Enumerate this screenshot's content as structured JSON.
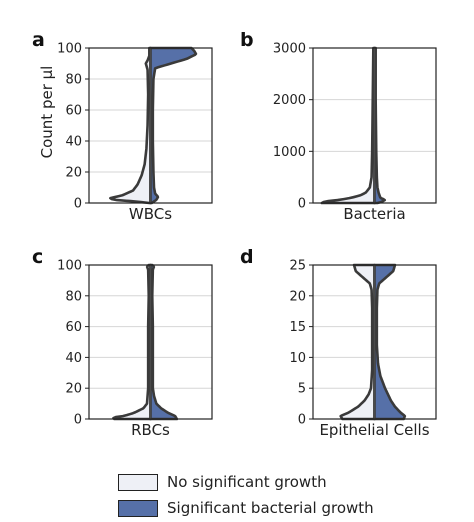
{
  "colors": {
    "no_growth": "#eef0f6",
    "growth": "#5670a8",
    "outline": "#3a3a3a",
    "centerline": "#4a4a4a"
  },
  "y_axis_title": "Count per µl",
  "legend": [
    {
      "label": "No significant growth",
      "color": "#eef0f6"
    },
    {
      "label": "Significant bacterial growth",
      "color": "#5670a8"
    }
  ],
  "chart_data": [
    {
      "type": "violin",
      "panel": "a",
      "xlabel": "WBCs",
      "ylim": [
        0,
        100
      ],
      "yticks": [
        0,
        20,
        40,
        60,
        80,
        100
      ],
      "grid": true,
      "series": [
        {
          "name": "No significant growth",
          "side": "left",
          "density": [
            [
              0,
              0.02
            ],
            [
              1,
              0.25
            ],
            [
              2,
              0.62
            ],
            [
              3,
              0.7
            ],
            [
              5,
              0.48
            ],
            [
              8,
              0.3
            ],
            [
              12,
              0.22
            ],
            [
              18,
              0.15
            ],
            [
              25,
              0.1
            ],
            [
              35,
              0.07
            ],
            [
              50,
              0.05
            ],
            [
              70,
              0.04
            ],
            [
              86,
              0.05
            ],
            [
              90,
              0.08
            ],
            [
              92,
              0.05
            ],
            [
              95,
              0.02
            ],
            [
              100,
              0.02
            ]
          ]
        },
        {
          "name": "Significant bacterial growth",
          "side": "right",
          "density": [
            [
              0,
              0.02
            ],
            [
              2,
              0.1
            ],
            [
              4,
              0.13
            ],
            [
              6,
              0.08
            ],
            [
              10,
              0.06
            ],
            [
              20,
              0.05
            ],
            [
              40,
              0.04
            ],
            [
              60,
              0.04
            ],
            [
              80,
              0.05
            ],
            [
              87,
              0.08
            ],
            [
              90,
              0.35
            ],
            [
              93,
              0.62
            ],
            [
              96,
              0.78
            ],
            [
              98,
              0.75
            ],
            [
              100,
              0.7
            ]
          ]
        }
      ]
    },
    {
      "type": "violin",
      "panel": "b",
      "xlabel": "Bacteria",
      "ylim": [
        0,
        3000
      ],
      "yticks": [
        0,
        1000,
        2000,
        3000
      ],
      "grid": true,
      "series": [
        {
          "name": "No significant growth",
          "side": "left",
          "density": [
            [
              0,
              0.9
            ],
            [
              30,
              0.85
            ],
            [
              60,
              0.6
            ],
            [
              100,
              0.4
            ],
            [
              150,
              0.24
            ],
            [
              200,
              0.15
            ],
            [
              300,
              0.08
            ],
            [
              500,
              0.05
            ],
            [
              1000,
              0.04
            ],
            [
              2000,
              0.03
            ],
            [
              3000,
              0.02
            ]
          ]
        },
        {
          "name": "Significant bacterial growth",
          "side": "right",
          "density": [
            [
              0,
              0.05
            ],
            [
              20,
              0.12
            ],
            [
              60,
              0.18
            ],
            [
              100,
              0.1
            ],
            [
              200,
              0.07
            ],
            [
              300,
              0.05
            ],
            [
              500,
              0.04
            ],
            [
              1000,
              0.03
            ],
            [
              2000,
              0.02
            ],
            [
              3000,
              0.02
            ]
          ]
        }
      ]
    },
    {
      "type": "violin",
      "panel": "c",
      "xlabel": "RBCs",
      "ylim": [
        0,
        100
      ],
      "yticks": [
        0,
        20,
        40,
        60,
        80,
        100
      ],
      "grid": true,
      "series": [
        {
          "name": "No significant growth",
          "side": "left",
          "density": [
            [
              0,
              0.62
            ],
            [
              1,
              0.64
            ],
            [
              2,
              0.45
            ],
            [
              4,
              0.28
            ],
            [
              7,
              0.12
            ],
            [
              10,
              0.06
            ],
            [
              20,
              0.04
            ],
            [
              40,
              0.04
            ],
            [
              60,
              0.04
            ],
            [
              80,
              0.03
            ],
            [
              97,
              0.04
            ],
            [
              99,
              0.06
            ],
            [
              100,
              0.03
            ]
          ]
        },
        {
          "name": "Significant bacterial growth",
          "side": "right",
          "density": [
            [
              0,
              0.45
            ],
            [
              2,
              0.42
            ],
            [
              4,
              0.3
            ],
            [
              7,
              0.18
            ],
            [
              10,
              0.1
            ],
            [
              15,
              0.06
            ],
            [
              20,
              0.04
            ],
            [
              40,
              0.04
            ],
            [
              60,
              0.04
            ],
            [
              80,
              0.03
            ],
            [
              97,
              0.04
            ],
            [
              99,
              0.06
            ],
            [
              100,
              0.03
            ]
          ]
        }
      ]
    },
    {
      "type": "violin",
      "panel": "d",
      "xlabel": "Epithelial Cells",
      "ylim": [
        0,
        25
      ],
      "yticks": [
        0,
        5,
        10,
        15,
        20,
        25
      ],
      "grid": true,
      "series": [
        {
          "name": "No significant growth",
          "side": "left",
          "density": [
            [
              0,
              0.55
            ],
            [
              0.5,
              0.58
            ],
            [
              1,
              0.45
            ],
            [
              2,
              0.28
            ],
            [
              3,
              0.17
            ],
            [
              4,
              0.1
            ],
            [
              5,
              0.06
            ],
            [
              8,
              0.04
            ],
            [
              12,
              0.04
            ],
            [
              18,
              0.04
            ],
            [
              21,
              0.05
            ],
            [
              22,
              0.08
            ],
            [
              23,
              0.2
            ],
            [
              24,
              0.32
            ],
            [
              25,
              0.35
            ]
          ]
        },
        {
          "name": "Significant bacterial growth",
          "side": "right",
          "density": [
            [
              0,
              0.5
            ],
            [
              0.5,
              0.52
            ],
            [
              1,
              0.45
            ],
            [
              2,
              0.35
            ],
            [
              3,
              0.28
            ],
            [
              5,
              0.18
            ],
            [
              7,
              0.1
            ],
            [
              9,
              0.06
            ],
            [
              12,
              0.04
            ],
            [
              18,
              0.04
            ],
            [
              21,
              0.05
            ],
            [
              22,
              0.08
            ],
            [
              23,
              0.2
            ],
            [
              24,
              0.32
            ],
            [
              25,
              0.35
            ]
          ]
        }
      ]
    }
  ]
}
